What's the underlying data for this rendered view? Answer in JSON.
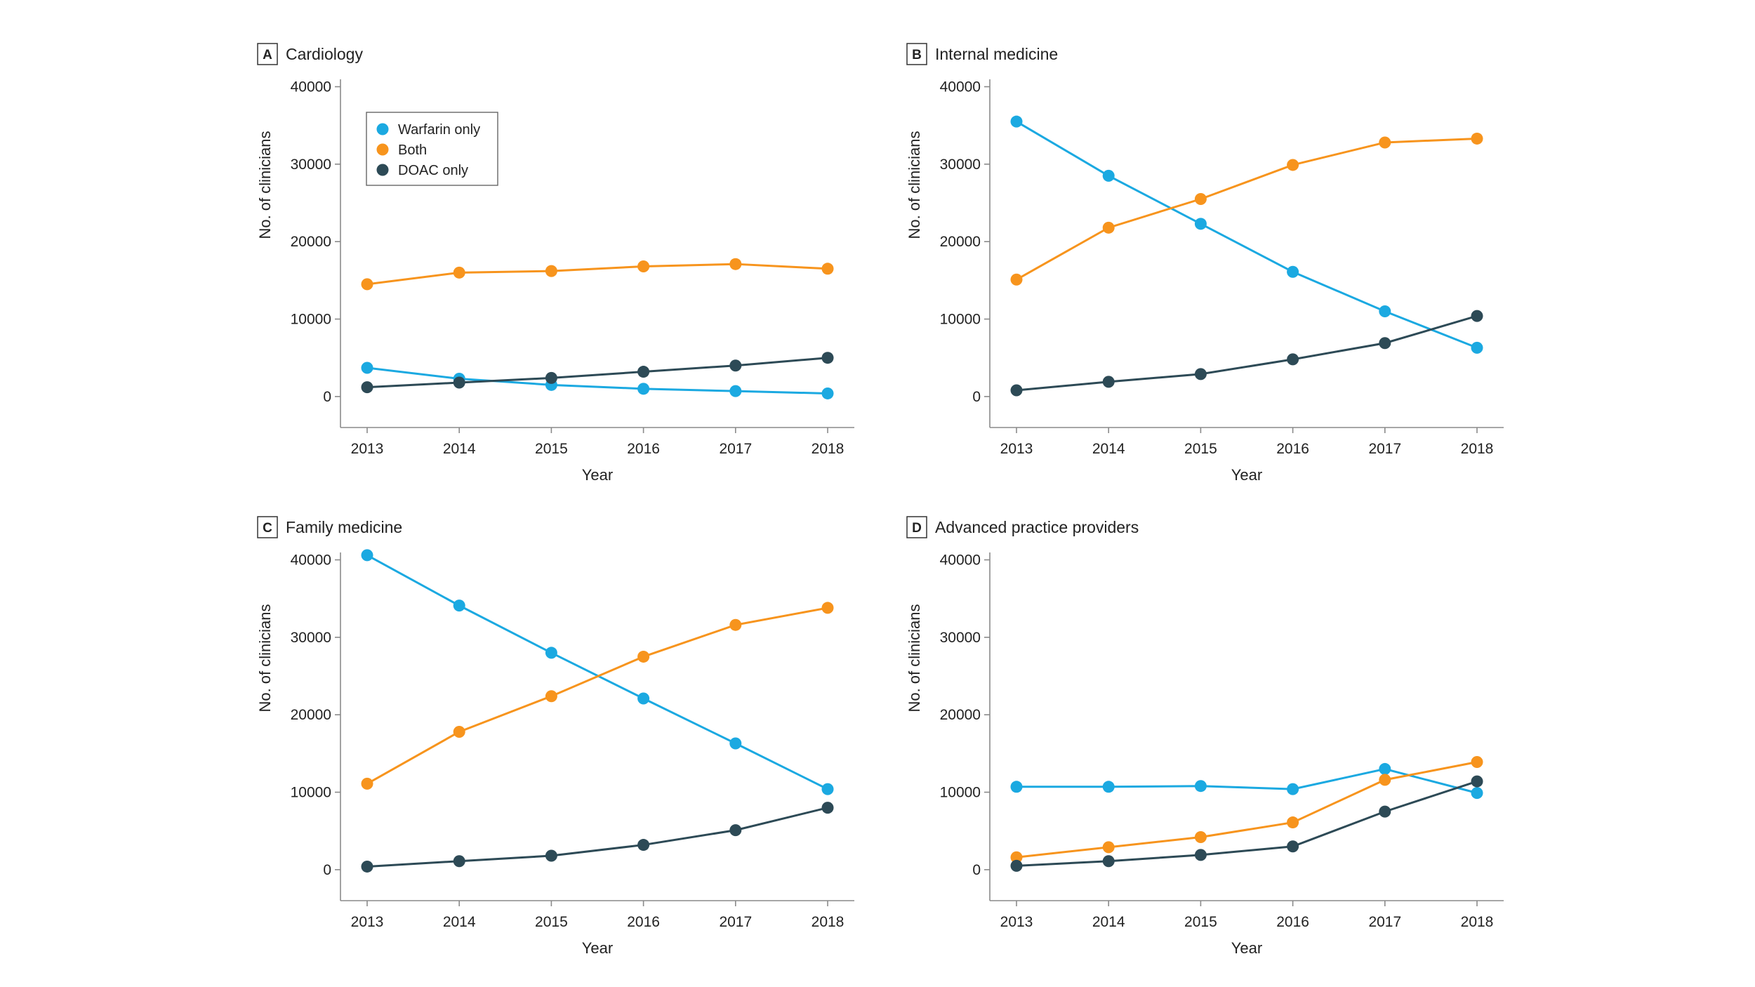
{
  "colors": {
    "warfarin": "#1BA9E1",
    "both": "#F7941D",
    "doac": "#2D4A56",
    "axis": "#8a8a8a"
  },
  "legend": {
    "items": [
      "Warfarin only",
      "Both",
      "DOAC only"
    ],
    "placement": "top-left of panel A"
  },
  "chart_data": [
    {
      "type": "line",
      "letter": "A",
      "title": "Cardiology",
      "xlabel": "Year",
      "ylabel": "No. of clinicians",
      "x": [
        2013,
        2014,
        2015,
        2016,
        2017,
        2018
      ],
      "yticks": [
        0,
        10000,
        20000,
        30000,
        40000
      ],
      "ylim": [
        -4000,
        40500
      ],
      "grid": false,
      "series": [
        {
          "name": "Warfarin only",
          "values": [
            3700,
            2300,
            1500,
            1000,
            700,
            400
          ]
        },
        {
          "name": "Both",
          "values": [
            14500,
            16000,
            16200,
            16800,
            17100,
            16500
          ]
        },
        {
          "name": "DOAC only",
          "values": [
            1200,
            1800,
            2400,
            3200,
            4000,
            5000
          ]
        }
      ]
    },
    {
      "type": "line",
      "letter": "B",
      "title": "Internal medicine",
      "xlabel": "Year",
      "ylabel": "No. of clinicians",
      "x": [
        2013,
        2014,
        2015,
        2016,
        2017,
        2018
      ],
      "yticks": [
        0,
        10000,
        20000,
        30000,
        40000
      ],
      "ylim": [
        -4000,
        40500
      ],
      "grid": false,
      "series": [
        {
          "name": "Warfarin only",
          "values": [
            35500,
            28500,
            22300,
            16100,
            11000,
            6300
          ]
        },
        {
          "name": "Both",
          "values": [
            15100,
            21800,
            25500,
            29900,
            32800,
            33300
          ]
        },
        {
          "name": "DOAC only",
          "values": [
            800,
            1900,
            2900,
            4800,
            6900,
            10400
          ]
        }
      ]
    },
    {
      "type": "line",
      "letter": "C",
      "title": "Family medicine",
      "xlabel": "Year",
      "ylabel": "No. of clinicians",
      "x": [
        2013,
        2014,
        2015,
        2016,
        2017,
        2018
      ],
      "yticks": [
        0,
        10000,
        20000,
        30000,
        40000
      ],
      "ylim": [
        -4000,
        40500
      ],
      "grid": false,
      "series": [
        {
          "name": "Warfarin only",
          "values": [
            40600,
            34100,
            28000,
            22100,
            16300,
            10400
          ]
        },
        {
          "name": "Both",
          "values": [
            11100,
            17800,
            22400,
            27500,
            31600,
            33800
          ]
        },
        {
          "name": "DOAC only",
          "values": [
            400,
            1100,
            1800,
            3200,
            5100,
            8000
          ]
        }
      ]
    },
    {
      "type": "line",
      "letter": "D",
      "title": "Advanced practice providers",
      "xlabel": "Year",
      "ylabel": "No. of clinicians",
      "x": [
        2013,
        2014,
        2015,
        2016,
        2017,
        2018
      ],
      "yticks": [
        0,
        10000,
        20000,
        30000,
        40000
      ],
      "ylim": [
        -4000,
        40500
      ],
      "grid": false,
      "series": [
        {
          "name": "Warfarin only",
          "values": [
            10700,
            10700,
            10800,
            10400,
            13000,
            9900
          ]
        },
        {
          "name": "Both",
          "values": [
            1600,
            2900,
            4200,
            6100,
            11600,
            13900
          ]
        },
        {
          "name": "DOAC only",
          "values": [
            500,
            1100,
            1900,
            3000,
            7500,
            11400
          ]
        }
      ]
    }
  ]
}
